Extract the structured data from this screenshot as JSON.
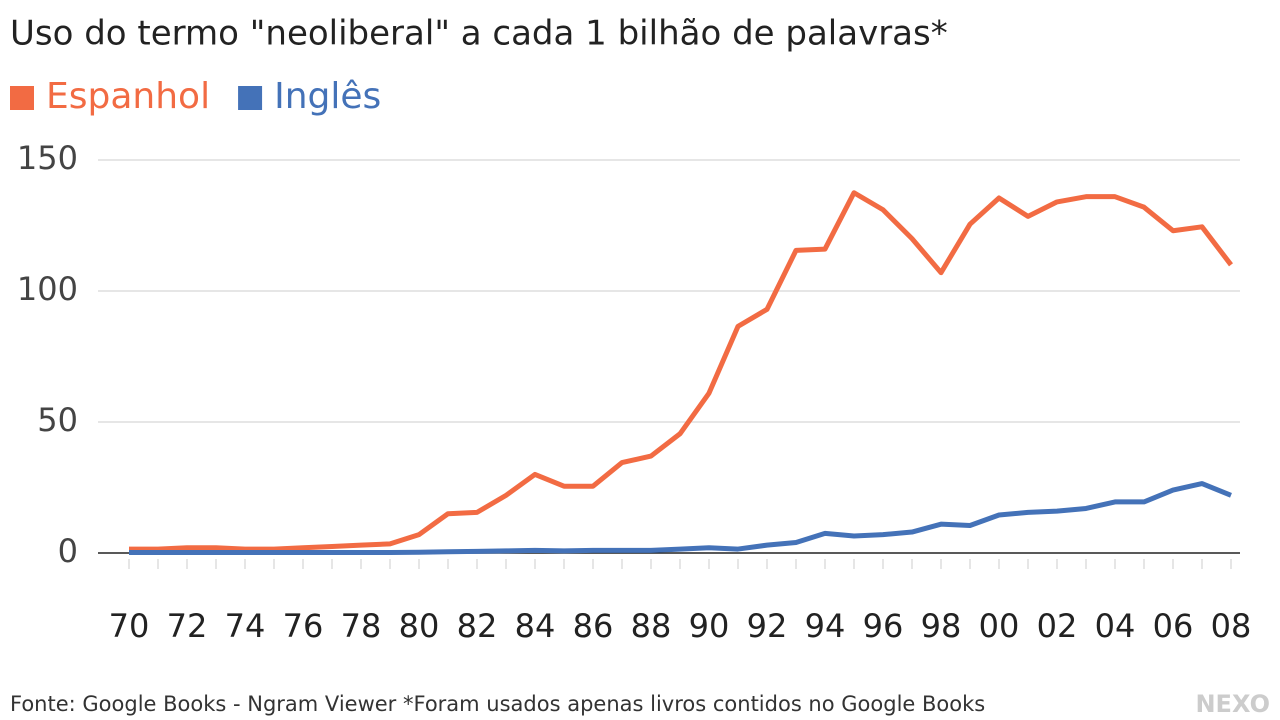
{
  "chart_data": {
    "type": "line",
    "title": "Uso do termo \"neoliberal\" a cada 1 bilhão de palavras*",
    "categories": [
      "70",
      null,
      "72",
      null,
      "74",
      null,
      "76",
      null,
      "78",
      null,
      "80",
      null,
      "82",
      null,
      "84",
      null,
      "86",
      null,
      "88",
      null,
      "90",
      null,
      "92",
      null,
      "94",
      null,
      "96",
      null,
      "98",
      null,
      "00",
      null,
      "02",
      null,
      "04",
      null,
      "06",
      null,
      "08"
    ],
    "series": [
      {
        "name": "Espanhol",
        "color": "#f26b43",
        "values": [
          1.5,
          1.5,
          2,
          2,
          1.5,
          1.5,
          2,
          2.5,
          3,
          3.5,
          7,
          15,
          15.5,
          22,
          30,
          25.5,
          25.5,
          34.5,
          37,
          45.5,
          61,
          86.5,
          93,
          115.5,
          116,
          137.5,
          131,
          120,
          107,
          125.5,
          135.5,
          128.5,
          134,
          136,
          136,
          132,
          123,
          124.5,
          110
        ]
      },
      {
        "name": "Inglês",
        "color": "#4472b8",
        "values": [
          0.2,
          0.2,
          0.2,
          0.2,
          0.2,
          0.2,
          0.2,
          0.2,
          0.2,
          0.2,
          0.3,
          0.5,
          0.6,
          0.8,
          1,
          0.8,
          1,
          1,
          1,
          1.5,
          2,
          1.5,
          3,
          4,
          7.5,
          6.5,
          7,
          8,
          11,
          10.5,
          14.5,
          15.5,
          16,
          17,
          19.5,
          19.5,
          24,
          26.5,
          22
        ]
      }
    ],
    "ylim": [
      0,
      150
    ],
    "yticks": [
      0,
      50,
      100,
      150
    ],
    "grid": true,
    "source": "Fonte: Google Books - Ngram Viewer *Foram usados apenas livros contidos no Google Books",
    "logo": "NEXO"
  }
}
